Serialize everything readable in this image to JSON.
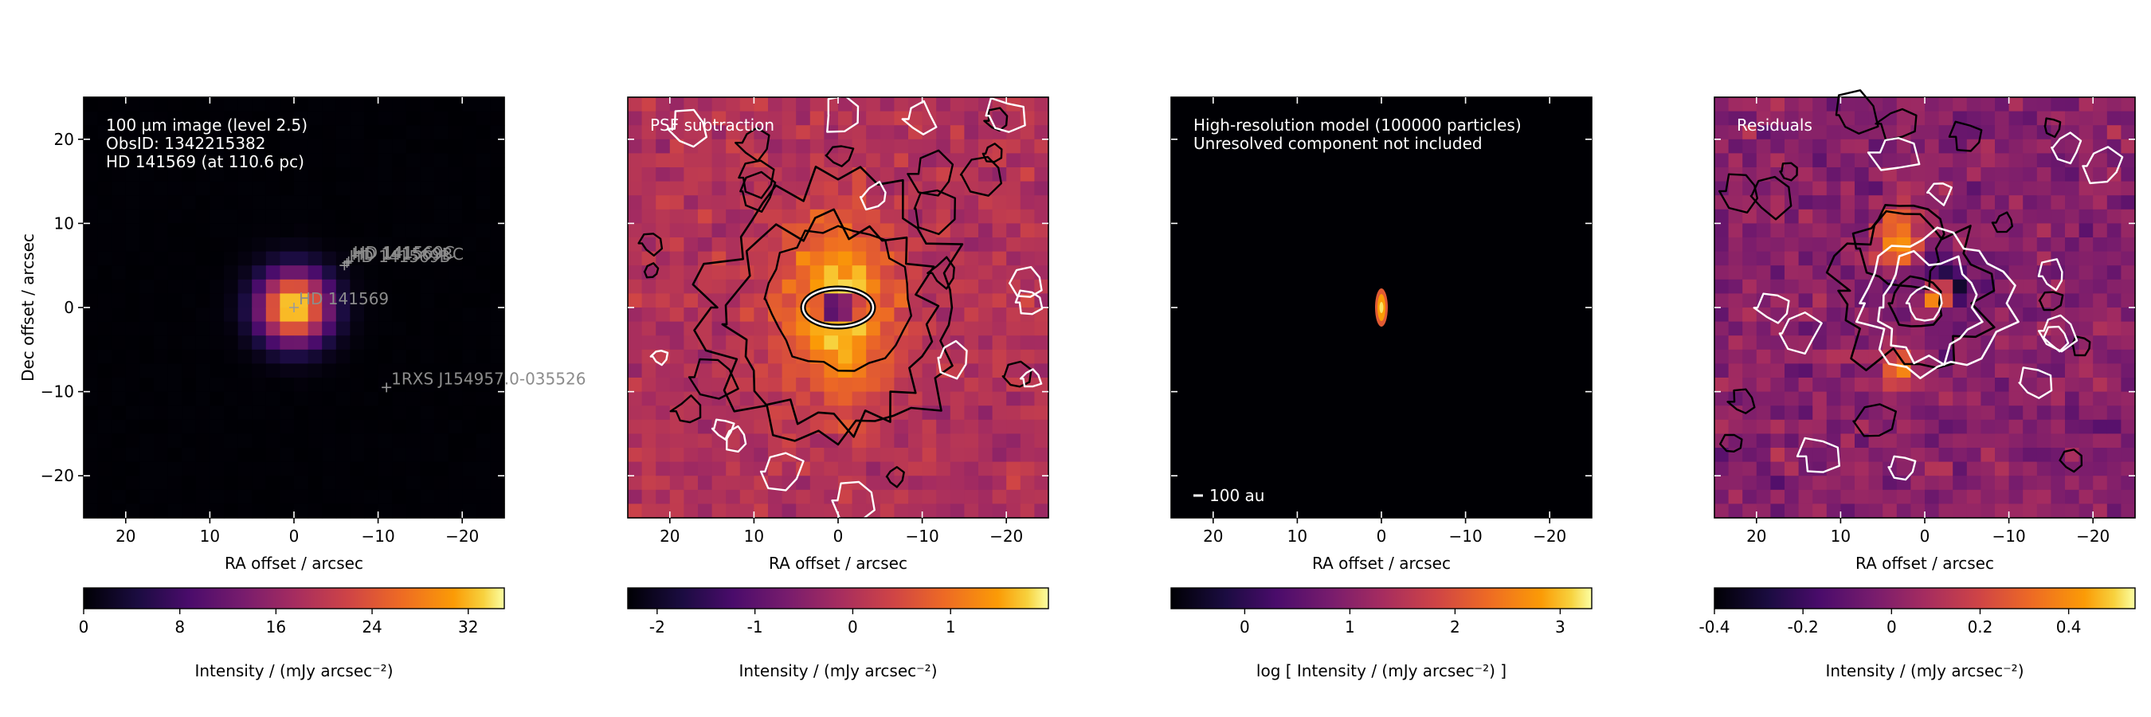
{
  "chart_data": [
    {
      "type": "heatmap",
      "panel": "observation",
      "annotations": [
        "100 µm image (level 2.5)",
        "ObsID: 1342215382",
        "HD 141569 (at 110.6 pc)"
      ],
      "xlabel": "RA offset / arcsec",
      "ylabel": "Dec offset / arcsec",
      "xlim": [
        25,
        -25
      ],
      "ylim": [
        -25,
        25
      ],
      "xticks": [
        20,
        10,
        0,
        -10,
        -20
      ],
      "yticks": [
        -20,
        -10,
        0,
        10,
        20
      ],
      "xtick_labels": [
        "20",
        "10",
        "0",
        "−10",
        "−20"
      ],
      "ytick_labels": [
        "−20",
        "−10",
        "0",
        "10",
        "20"
      ],
      "sources": [
        {
          "label": "HD 141569",
          "x": 0,
          "y": 0
        },
        {
          "label": "HD 141569C",
          "x": -6.5,
          "y": 5.5
        },
        {
          "label": "HD 141569B",
          "x": -6,
          "y": 5
        },
        {
          "label": "HD 141569BC",
          "x": -6.3,
          "y": 5.3
        },
        {
          "label": "1RXS J154957.0-035526",
          "x": -11,
          "y": -9.5
        }
      ],
      "colorbar": {
        "label": "Intensity / (mJy arcsec⁻²)",
        "ticks": [
          0,
          8,
          16,
          24,
          32
        ],
        "tick_labels": [
          "0",
          "8",
          "16",
          "24",
          "32"
        ],
        "range": [
          0,
          35
        ],
        "colormap": "inferno"
      }
    },
    {
      "type": "heatmap",
      "panel": "psf-subtraction",
      "annotations": [
        "PSF subtraction"
      ],
      "xlabel": "RA offset / arcsec",
      "xlim": [
        25,
        -25
      ],
      "ylim": [
        -25,
        25
      ],
      "xticks": [
        20,
        10,
        0,
        -10,
        -20
      ],
      "xtick_labels": [
        "20",
        "10",
        "0",
        "−10",
        "−20"
      ],
      "colorbar": {
        "label": "Intensity / (mJy arcsec⁻²)",
        "ticks": [
          -2,
          -1,
          0,
          1
        ],
        "tick_labels": [
          "-2",
          "-1",
          "0",
          "1"
        ],
        "range": [
          -2.3,
          2.0
        ],
        "colormap": "inferno"
      }
    },
    {
      "type": "heatmap",
      "panel": "model",
      "annotations": [
        "High-resolution model (100000 particles)",
        "Unresolved component not included"
      ],
      "scale_bar": "100 au",
      "xlabel": "RA offset / arcsec",
      "xlim": [
        25,
        -25
      ],
      "ylim": [
        -25,
        25
      ],
      "xticks": [
        20,
        10,
        0,
        -10,
        -20
      ],
      "xtick_labels": [
        "20",
        "10",
        "0",
        "−10",
        "−20"
      ],
      "colorbar": {
        "label": "log [ Intensity / (mJy arcsec⁻²) ]",
        "ticks": [
          0,
          1,
          2,
          3
        ],
        "tick_labels": [
          "0",
          "1",
          "2",
          "3"
        ],
        "range": [
          -0.7,
          3.3
        ],
        "colormap": "inferno"
      }
    },
    {
      "type": "heatmap",
      "panel": "residuals",
      "annotations": [
        "Residuals"
      ],
      "xlabel": "RA offset / arcsec",
      "xlim": [
        25,
        -25
      ],
      "ylim": [
        -25,
        25
      ],
      "xticks": [
        20,
        10,
        0,
        -10,
        -20
      ],
      "xtick_labels": [
        "20",
        "10",
        "0",
        "−10",
        "−20"
      ],
      "colorbar": {
        "label": "Intensity / (mJy arcsec⁻²)",
        "ticks": [
          -0.4,
          -0.2,
          0,
          0.2,
          0.4
        ],
        "tick_labels": [
          "-0.4",
          "-0.2",
          "0",
          "0.2",
          "0.4"
        ],
        "range": [
          -0.4,
          0.55
        ],
        "colormap": "inferno"
      }
    }
  ]
}
